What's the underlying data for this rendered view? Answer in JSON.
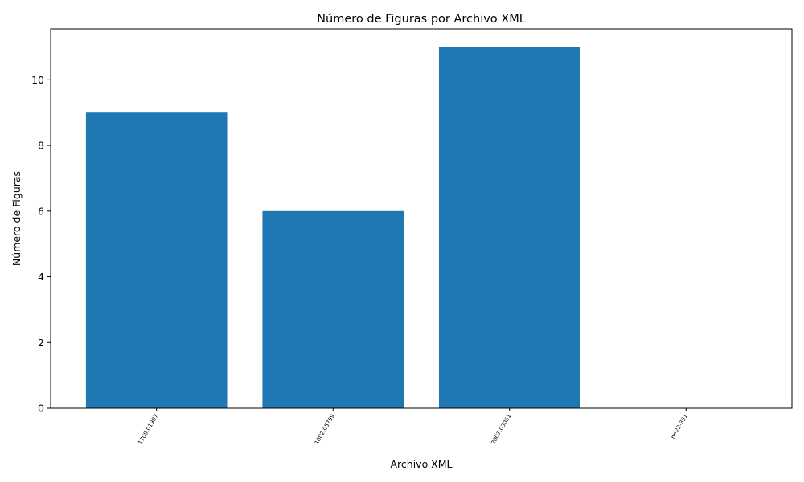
{
  "chart_data": {
    "type": "bar",
    "title": "Número de Figuras por Archivo XML",
    "xlabel": "Archivo XML",
    "ylabel": "Número de Figuras",
    "categories": [
      "1709.01907",
      "1802.05799",
      "2007.03051",
      "hr-22-351"
    ],
    "values": [
      9,
      6,
      11,
      0
    ],
    "ylim": [
      0,
      11.55
    ],
    "yticks": [
      0,
      2,
      4,
      6,
      8,
      10
    ],
    "xtick_rotation": 60,
    "grid": false,
    "legend": "none",
    "bar_color": "#1f77b4"
  }
}
